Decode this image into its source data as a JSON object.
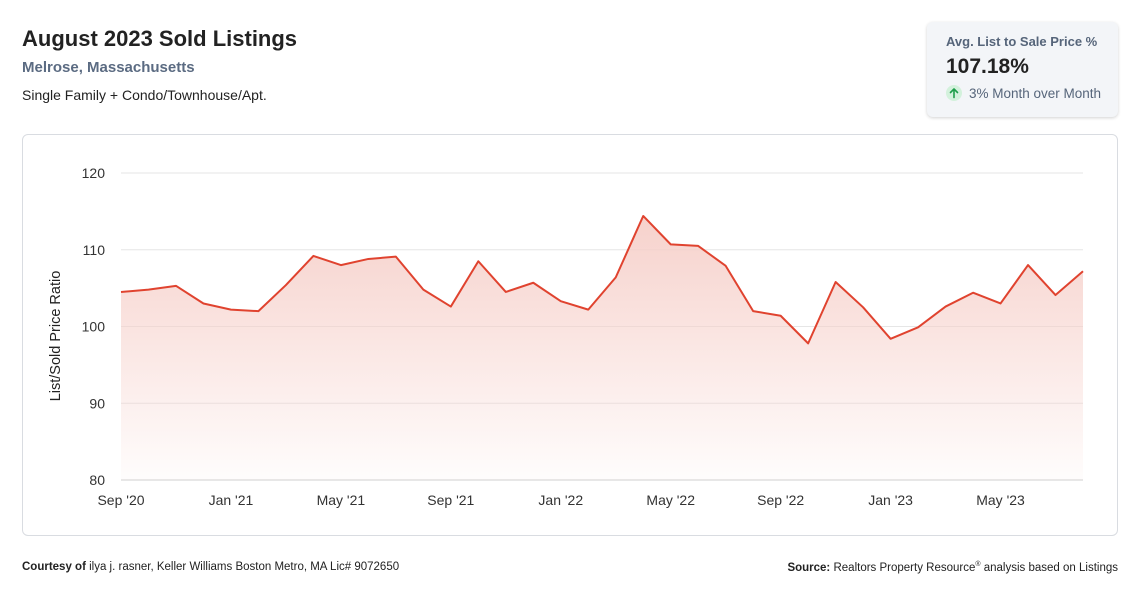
{
  "header": {
    "title": "August 2023 Sold Listings",
    "location": "Melrose, Massachusetts",
    "property_types": "Single Family + Condo/Townhouse/Apt."
  },
  "kpi": {
    "label": "Avg. List to Sale Price %",
    "value": "107.18%",
    "change": "3% Month over Month",
    "change_icon": "arrow-up-icon",
    "change_color": "#1e9e4a"
  },
  "footer": {
    "courtesy_label": "Courtesy of",
    "courtesy_text": "ilya j. rasner, Keller Williams Boston Metro, MA Lic# 9072650",
    "source_label": "Source:",
    "source_text_main": "Realtors Property Resource",
    "source_registered": "®",
    "source_text_tail": " analysis based on Listings"
  },
  "chart_data": {
    "type": "area",
    "ylabel": "List/Sold Price Ratio",
    "ylim": [
      80,
      120
    ],
    "y_ticks": [
      "120",
      "110",
      "100",
      "90",
      "80"
    ],
    "x_tick_labels": [
      "Sep '20",
      "Jan '21",
      "May '21",
      "Sep '21",
      "Jan '22",
      "May '22",
      "Sep '22",
      "Jan '23",
      "May '23"
    ],
    "x_tick_indices": [
      0,
      4,
      8,
      12,
      16,
      20,
      24,
      28,
      32
    ],
    "grid": true,
    "line_color": "#e0432f",
    "fill_color": "#f6cfc9",
    "x": [
      "Sep 2020",
      "Oct 2020",
      "Nov 2020",
      "Dec 2020",
      "Jan 2021",
      "Feb 2021",
      "Mar 2021",
      "Apr 2021",
      "May 2021",
      "Jun 2021",
      "Jul 2021",
      "Aug 2021",
      "Sep 2021",
      "Oct 2021",
      "Nov 2021",
      "Dec 2021",
      "Jan 2022",
      "Feb 2022",
      "Mar 2022",
      "Apr 2022",
      "May 2022",
      "Jun 2022",
      "Jul 2022",
      "Aug 2022",
      "Sep 2022",
      "Oct 2022",
      "Nov 2022",
      "Dec 2022",
      "Jan 2023",
      "Feb 2023",
      "Mar 2023",
      "Apr 2023",
      "May 2023",
      "Jun 2023",
      "Jul 2023",
      "Aug 2023"
    ],
    "values": [
      104.5,
      104.8,
      105.3,
      103.0,
      102.2,
      102.0,
      105.4,
      109.2,
      108.0,
      108.8,
      109.1,
      104.8,
      102.6,
      108.5,
      104.5,
      105.7,
      103.3,
      102.2,
      106.4,
      114.4,
      110.7,
      110.5,
      107.9,
      102.0,
      101.4,
      97.8,
      105.8,
      102.5,
      98.4,
      99.9,
      102.6,
      104.4,
      103.0,
      108.0,
      104.1,
      107.2
    ]
  }
}
